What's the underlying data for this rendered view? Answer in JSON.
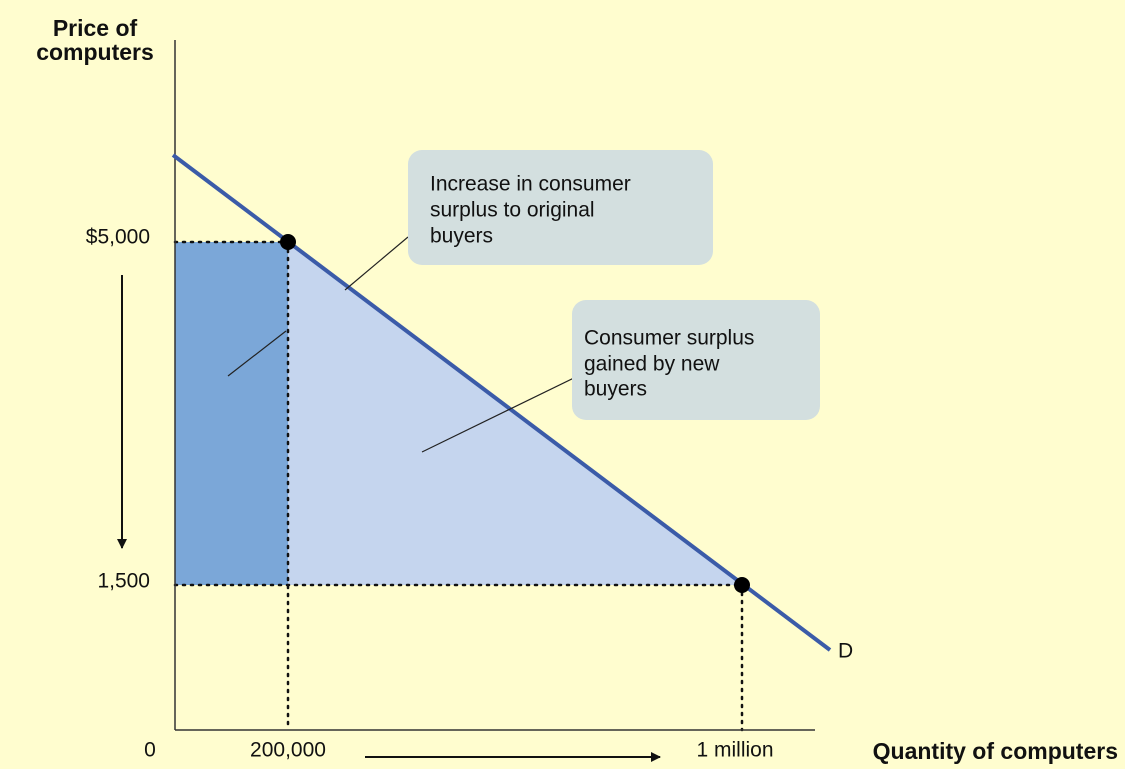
{
  "y_axis_label": [
    "Price of",
    "computers"
  ],
  "x_axis_label": "Quantity of computers",
  "y_ticks": [
    "$5,000",
    "1,500"
  ],
  "x_ticks": [
    "0",
    "200,000",
    "1 million"
  ],
  "curve_label": "D",
  "callouts": [
    {
      "lines": [
        "Increase in consumer",
        "surplus to original",
        "buyers"
      ]
    },
    {
      "lines": [
        "Consumer surplus",
        "gained by new",
        "buyers"
      ]
    }
  ]
}
